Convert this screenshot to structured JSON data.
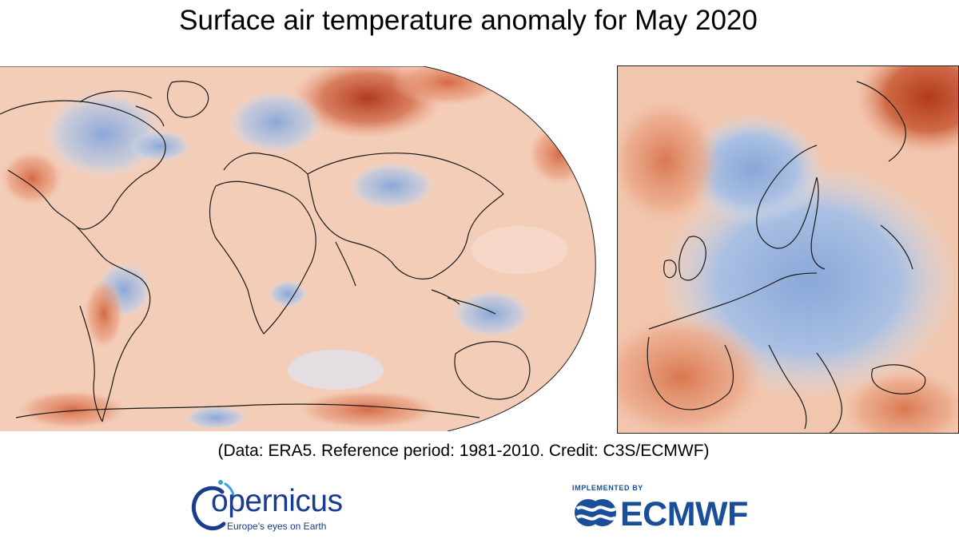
{
  "title": "Surface air temperature anomaly for May 2020",
  "credit": "(Data: ERA5.  Reference period: 1981-2010.  Credit: C3S/ECMWF)",
  "maps": {
    "world": {
      "projection": "robinson",
      "region": "global"
    },
    "europe": {
      "region": "europe"
    }
  },
  "colors": {
    "warm_strong": "#b23a1c",
    "warm": "#e8997a",
    "warm_light": "#f6d9cb",
    "cool": "#9fb8df",
    "cool_light": "#d7e2f1",
    "coastline": "#1a1a1a"
  },
  "logos": {
    "copernicus": {
      "name": "opernicus",
      "tagline": "Europe's eyes on Earth",
      "color": "#1a3c8c"
    },
    "ecmwf": {
      "implemented_by": "IMPLEMENTED BY",
      "name": "ECMWF",
      "color": "#1a4e9a"
    }
  }
}
